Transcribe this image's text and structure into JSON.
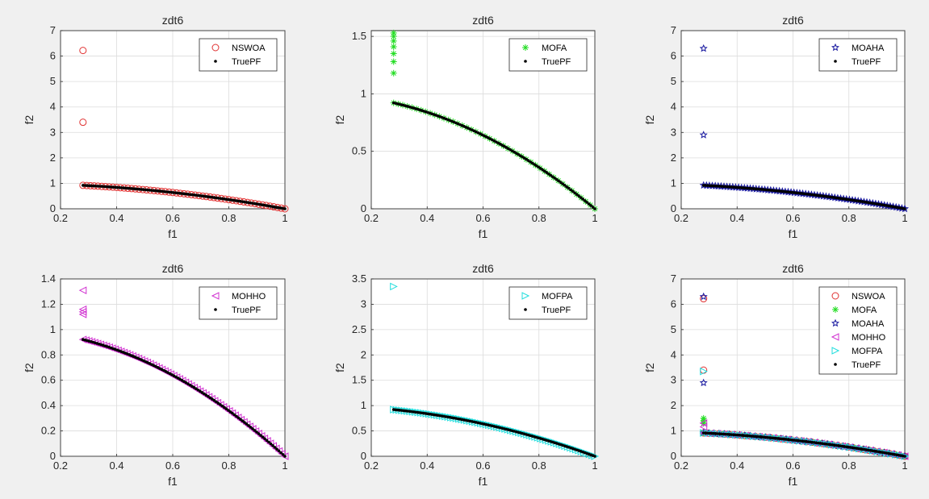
{
  "figure": {
    "background": "#f0f0f0"
  },
  "chart_data": [
    {
      "type": "scatter",
      "title": "zdt6",
      "xlabel": "f1",
      "ylabel": "f2",
      "xlim": [
        0.2,
        1
      ],
      "ylim": [
        0,
        7
      ],
      "xticks": [
        "0.2",
        "0.4",
        "0.6",
        "0.8",
        "1"
      ],
      "yticks": [
        "0",
        "1",
        "2",
        "3",
        "4",
        "5",
        "6",
        "7"
      ],
      "grid": true,
      "legend_position": "top-right",
      "series": [
        {
          "name": "NSWOA",
          "marker": "circle",
          "color": "#e03030",
          "pf_x_min": 0.28,
          "pf_count": 55,
          "outliers": [
            [
              0.28,
              6.22
            ],
            [
              0.28,
              3.4
            ]
          ]
        },
        {
          "name": "TruePF",
          "marker": "dot",
          "color": "#000000"
        }
      ]
    },
    {
      "type": "scatter",
      "title": "zdt6",
      "xlabel": "f1",
      "ylabel": "f2",
      "xlim": [
        0.2,
        1
      ],
      "ylim": [
        0,
        1.55
      ],
      "xticks": [
        "0.2",
        "0.4",
        "0.6",
        "0.8",
        "1"
      ],
      "yticks": [
        "0",
        "0.5",
        "1",
        "1.5"
      ],
      "grid": true,
      "legend_position": "top-right",
      "series": [
        {
          "name": "MOFA",
          "marker": "asterisk",
          "color": "#22dd22",
          "pf_x_min": 0.28,
          "pf_count": 45,
          "outliers": [
            [
              0.28,
              1.18
            ],
            [
              0.28,
              1.28
            ],
            [
              0.28,
              1.35
            ],
            [
              0.28,
              1.41
            ],
            [
              0.28,
              1.46
            ],
            [
              0.28,
              1.5
            ],
            [
              0.28,
              1.53
            ]
          ]
        },
        {
          "name": "TruePF",
          "marker": "dot",
          "color": "#000000"
        }
      ]
    },
    {
      "type": "scatter",
      "title": "zdt6",
      "xlabel": "f1",
      "ylabel": "f2",
      "xlim": [
        0.2,
        1
      ],
      "ylim": [
        0,
        7
      ],
      "xticks": [
        "0.2",
        "0.4",
        "0.6",
        "0.8",
        "1"
      ],
      "yticks": [
        "0",
        "1",
        "2",
        "3",
        "4",
        "5",
        "6",
        "7"
      ],
      "grid": true,
      "legend_position": "top-right",
      "series": [
        {
          "name": "MOAHA",
          "marker": "star",
          "color": "#1a1aa0",
          "pf_x_min": 0.28,
          "pf_count": 70,
          "outliers": [
            [
              0.28,
              6.3
            ],
            [
              0.28,
              2.9
            ]
          ]
        },
        {
          "name": "TruePF",
          "marker": "dot",
          "color": "#000000"
        }
      ]
    },
    {
      "type": "scatter",
      "title": "zdt6",
      "xlabel": "f1",
      "ylabel": "f2",
      "xlim": [
        0.2,
        1
      ],
      "ylim": [
        0,
        1.4
      ],
      "xticks": [
        "0.2",
        "0.4",
        "0.6",
        "0.8",
        "1"
      ],
      "yticks": [
        "0",
        "0.2",
        "0.4",
        "0.6",
        "0.8",
        "1",
        "1.2",
        "1.4"
      ],
      "grid": true,
      "legend_position": "top-right",
      "series": [
        {
          "name": "MOHHO",
          "marker": "triangle-left",
          "color": "#d030d0",
          "pf_x_min": 0.28,
          "pf_count": 70,
          "outliers": [
            [
              0.28,
              1.31
            ],
            [
              0.28,
              1.16
            ],
            [
              0.28,
              1.14
            ],
            [
              0.28,
              1.12
            ]
          ]
        },
        {
          "name": "TruePF",
          "marker": "dot",
          "color": "#000000"
        }
      ]
    },
    {
      "type": "scatter",
      "title": "zdt6",
      "xlabel": "f1",
      "ylabel": "f2",
      "xlim": [
        0.2,
        1
      ],
      "ylim": [
        0,
        3.5
      ],
      "xticks": [
        "0.2",
        "0.4",
        "0.6",
        "0.8",
        "1"
      ],
      "yticks": [
        "0",
        "0.5",
        "1",
        "1.5",
        "2",
        "2.5",
        "3",
        "3.5"
      ],
      "grid": true,
      "legend_position": "top-right",
      "series": [
        {
          "name": "MOFPA",
          "marker": "triangle-right",
          "color": "#20dddd",
          "pf_x_min": 0.28,
          "pf_count": 75,
          "outliers": [
            [
              0.28,
              3.35
            ]
          ]
        },
        {
          "name": "TruePF",
          "marker": "dot",
          "color": "#000000"
        }
      ]
    },
    {
      "type": "scatter",
      "title": "zdt6",
      "xlabel": "f1",
      "ylabel": "f2",
      "xlim": [
        0.2,
        1
      ],
      "ylim": [
        0,
        7
      ],
      "xticks": [
        "0.2",
        "0.4",
        "0.6",
        "0.8",
        "1"
      ],
      "yticks": [
        "0",
        "1",
        "2",
        "3",
        "4",
        "5",
        "6",
        "7"
      ],
      "grid": true,
      "legend_position": "top-right",
      "series": [
        {
          "name": "NSWOA",
          "marker": "circle",
          "color": "#e03030",
          "pf_x_min": 0.28,
          "pf_count": 40,
          "outliers": [
            [
              0.28,
              6.22
            ],
            [
              0.28,
              3.4
            ]
          ]
        },
        {
          "name": "MOFA",
          "marker": "asterisk",
          "color": "#22dd22",
          "pf_x_min": 0.28,
          "pf_count": 25,
          "outliers": [
            [
              0.28,
              1.3
            ],
            [
              0.28,
              1.4
            ],
            [
              0.28,
              1.5
            ]
          ]
        },
        {
          "name": "MOAHA",
          "marker": "star",
          "color": "#1a1aa0",
          "pf_x_min": 0.28,
          "pf_count": 40,
          "outliers": [
            [
              0.28,
              6.3
            ],
            [
              0.28,
              2.9
            ]
          ]
        },
        {
          "name": "MOHHO",
          "marker": "triangle-left",
          "color": "#d030d0",
          "pf_x_min": 0.28,
          "pf_count": 30,
          "outliers": [
            [
              0.28,
              1.31
            ],
            [
              0.28,
              1.16
            ]
          ]
        },
        {
          "name": "MOFPA",
          "marker": "triangle-right",
          "color": "#20dddd",
          "pf_x_min": 0.28,
          "pf_count": 45,
          "outliers": [
            [
              0.28,
              3.35
            ]
          ]
        },
        {
          "name": "TruePF",
          "marker": "dot",
          "color": "#000000"
        }
      ]
    }
  ]
}
